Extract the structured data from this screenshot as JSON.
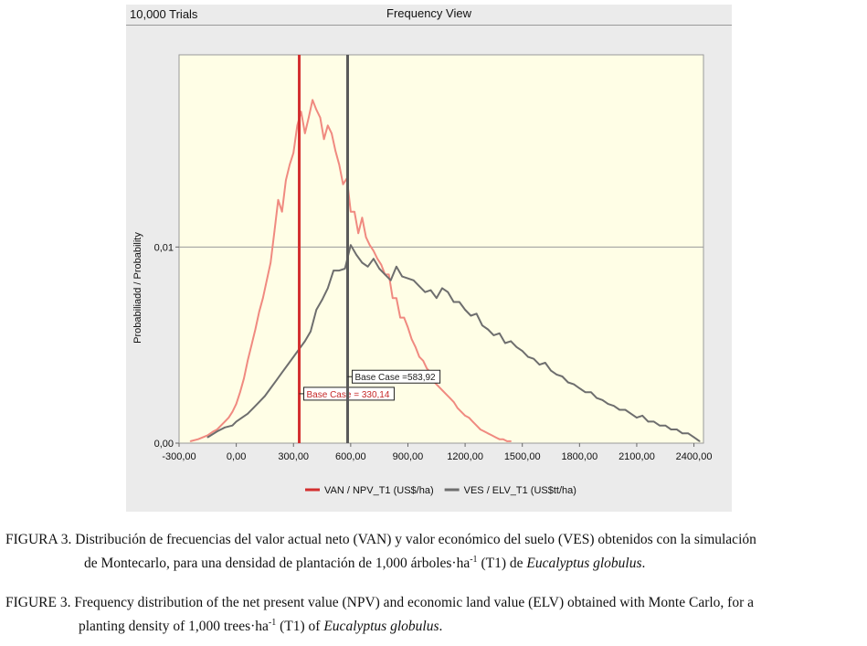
{
  "header": {
    "trials": "10,000 Trials",
    "view_title": "Frequency View"
  },
  "chart_data": {
    "type": "line",
    "ylabel": "Probabiliadd / Probability",
    "xlim": [
      -300,
      2450
    ],
    "ylim": [
      0,
      0.0198
    ],
    "x_ticks": [
      {
        "value": -300,
        "label": "-300,00"
      },
      {
        "value": 0,
        "label": "0,00"
      },
      {
        "value": 300,
        "label": "300,00"
      },
      {
        "value": 600,
        "label": "600,00"
      },
      {
        "value": 900,
        "label": "900,00"
      },
      {
        "value": 1200,
        "label": "1200,00"
      },
      {
        "value": 1500,
        "label": "1500,00"
      },
      {
        "value": 1800,
        "label": "1800,00"
      },
      {
        "value": 2100,
        "label": "2100,00"
      },
      {
        "value": 2400,
        "label": "2400,00"
      }
    ],
    "y_ticks": [
      {
        "value": 0,
        "label": "0,00"
      },
      {
        "value": 0.01,
        "label": "0,01"
      }
    ],
    "gridline_y": 0.01,
    "series": [
      {
        "name": "VAN / NPV_T1 (US$/ha)",
        "color": "#f08a80",
        "x": [
          -240,
          -200,
          -150,
          -120,
          -100,
          -80,
          -60,
          -40,
          -20,
          0,
          20,
          40,
          60,
          80,
          100,
          120,
          140,
          160,
          180,
          200,
          220,
          240,
          260,
          280,
          300,
          320,
          340,
          360,
          380,
          400,
          420,
          440,
          460,
          480,
          500,
          520,
          540,
          560,
          580,
          600,
          620,
          640,
          660,
          680,
          700,
          720,
          740,
          760,
          780,
          800,
          820,
          840,
          860,
          880,
          900,
          920,
          940,
          960,
          980,
          1000,
          1020,
          1040,
          1060,
          1080,
          1100,
          1120,
          1140,
          1160,
          1180,
          1200,
          1220,
          1240,
          1260,
          1280,
          1300,
          1320,
          1340,
          1360,
          1380,
          1400,
          1420,
          1440
        ],
        "values": [
          0.0001,
          0.0002,
          0.0004,
          0.0006,
          0.0007,
          0.0009,
          0.0011,
          0.0013,
          0.0016,
          0.002,
          0.0026,
          0.0033,
          0.0042,
          0.005,
          0.0058,
          0.0067,
          0.0074,
          0.0083,
          0.0092,
          0.0108,
          0.0124,
          0.0118,
          0.0134,
          0.0142,
          0.0148,
          0.0162,
          0.0169,
          0.0158,
          0.0166,
          0.0175,
          0.017,
          0.0166,
          0.0155,
          0.0162,
          0.0158,
          0.0149,
          0.0142,
          0.0132,
          0.0135,
          0.0118,
          0.0118,
          0.0107,
          0.0115,
          0.0105,
          0.0101,
          0.0098,
          0.0094,
          0.0091,
          0.0086,
          0.0086,
          0.0074,
          0.0074,
          0.0064,
          0.0064,
          0.0059,
          0.0053,
          0.0049,
          0.0044,
          0.0042,
          0.0038,
          0.0036,
          0.0031,
          0.0029,
          0.0027,
          0.0025,
          0.0023,
          0.0021,
          0.0018,
          0.0016,
          0.0014,
          0.0013,
          0.0011,
          0.0009,
          0.0007,
          0.0006,
          0.0005,
          0.0004,
          0.0003,
          0.0002,
          0.0002,
          0.0001,
          0.0001
        ]
      },
      {
        "name": "VES / ELV_T1 (US$tt/ha)",
        "color": "#6e6e6e",
        "x": [
          -150,
          -100,
          -60,
          -20,
          0,
          30,
          60,
          90,
          120,
          150,
          180,
          210,
          240,
          270,
          300,
          330,
          360,
          390,
          420,
          450,
          480,
          510,
          540,
          570,
          600,
          630,
          660,
          690,
          720,
          750,
          780,
          810,
          840,
          870,
          900,
          930,
          960,
          990,
          1020,
          1050,
          1080,
          1110,
          1140,
          1170,
          1200,
          1230,
          1260,
          1290,
          1320,
          1350,
          1380,
          1410,
          1440,
          1470,
          1500,
          1530,
          1560,
          1590,
          1620,
          1650,
          1680,
          1710,
          1740,
          1770,
          1800,
          1830,
          1860,
          1890,
          1920,
          1950,
          1980,
          2010,
          2040,
          2070,
          2100,
          2130,
          2160,
          2190,
          2220,
          2250,
          2280,
          2310,
          2340,
          2370,
          2400,
          2430
        ],
        "values": [
          0.0003,
          0.0006,
          0.0008,
          0.0009,
          0.0011,
          0.0013,
          0.0015,
          0.0018,
          0.0021,
          0.0024,
          0.0028,
          0.0032,
          0.0036,
          0.004,
          0.0044,
          0.0048,
          0.0052,
          0.0057,
          0.0068,
          0.0073,
          0.0079,
          0.0088,
          0.0088,
          0.0089,
          0.0101,
          0.0096,
          0.0092,
          0.009,
          0.0094,
          0.0089,
          0.0086,
          0.0083,
          0.009,
          0.0085,
          0.0084,
          0.0083,
          0.008,
          0.0077,
          0.0078,
          0.0074,
          0.0079,
          0.0077,
          0.0072,
          0.0072,
          0.0068,
          0.0065,
          0.0066,
          0.006,
          0.0058,
          0.0055,
          0.0056,
          0.0051,
          0.0052,
          0.0049,
          0.0047,
          0.0044,
          0.0043,
          0.004,
          0.0041,
          0.0037,
          0.0035,
          0.0034,
          0.0031,
          0.003,
          0.0028,
          0.0026,
          0.0026,
          0.0023,
          0.0022,
          0.002,
          0.0019,
          0.0017,
          0.0017,
          0.0015,
          0.0013,
          0.0014,
          0.0011,
          0.0011,
          0.0009,
          0.0009,
          0.0007,
          0.0007,
          0.0005,
          0.0005,
          0.0003,
          0.0001
        ]
      }
    ],
    "base_cases": [
      {
        "value": 330.14,
        "label": "Base Case = 330,14",
        "color": "#d32f2f",
        "text_color": "#c62828",
        "label_y": 0.00252
      },
      {
        "value": 583.92,
        "label": "Base Case =583,92",
        "color": "#5a5a5a",
        "text_color": "#222222",
        "label_y": 0.00339
      }
    ],
    "legend": [
      {
        "name": "VAN / NPV_T1 (US$/ha)",
        "color": "#d32f2f"
      },
      {
        "name": "VES / ELV_T1 (US$tt/ha)",
        "color": "#6e6e6e"
      }
    ]
  },
  "caption_es": {
    "line1": "FIGURA 3. Distribución de frecuencias del valor actual neto (VAN) y valor económico del suelo (VES) obtenidos con la simulación",
    "line2_a": "de Montecarlo, para una densidad de plantación de 1,000 árboles·ha",
    "sup": "-1",
    "line2_b": " (T1) de ",
    "species": "Eucalyptus globulus",
    "end": "."
  },
  "caption_en": {
    "line1": "FIGURE 3. Frequency distribution of the net present value (NPV) and economic land value (ELV) obtained with Monte Carlo, for a",
    "line2_a": "planting density of 1,000 trees·ha",
    "sup": "-1",
    "line2_b": " (T1) of ",
    "species": "Eucalyptus globulus",
    "end": "."
  }
}
